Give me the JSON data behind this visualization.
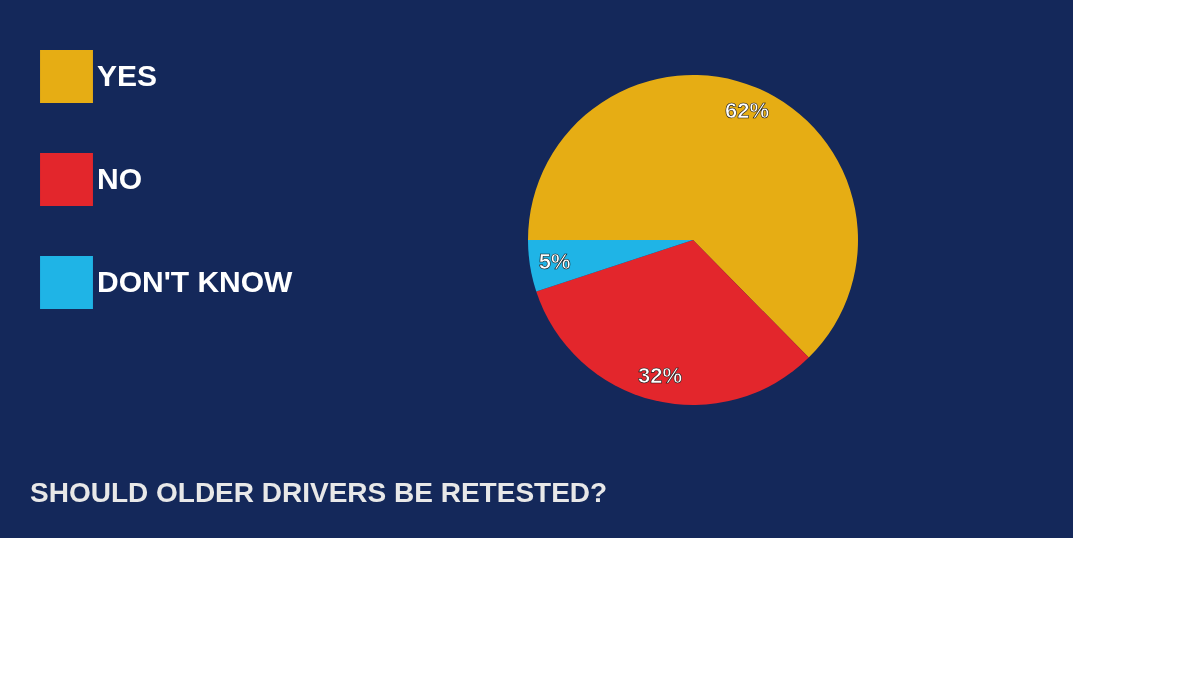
{
  "chart_data": {
    "type": "pie",
    "title": "SHOULD OLDER DRIVERS BE RETESTED?",
    "categories": [
      "YES",
      "NO",
      "DON'T KNOW"
    ],
    "values": [
      62,
      32,
      5
    ],
    "colors": [
      "#e6ad14",
      "#e3262c",
      "#1fb4e6"
    ],
    "value_labels": [
      "62%",
      "32%",
      "5%"
    ],
    "legend": "left"
  }
}
